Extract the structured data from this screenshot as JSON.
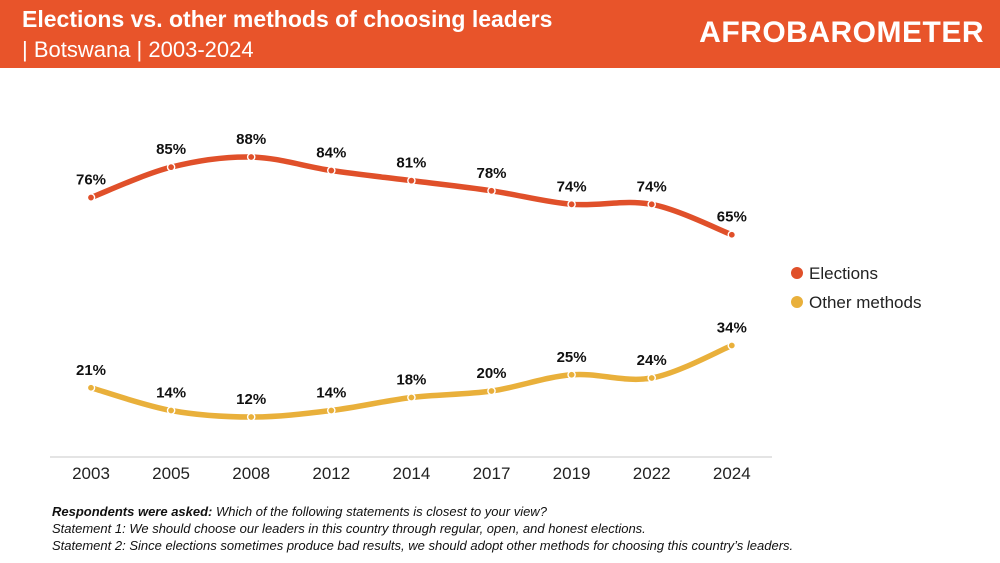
{
  "header": {
    "title": "Elections vs. other methods of choosing leaders",
    "subtitle": "| Botswana | 2003-2024",
    "logo": "AFROBAROMETER"
  },
  "colors": {
    "header_bg": "#e8542a",
    "elections": "#e0502a",
    "other": "#e9b03b"
  },
  "chart_data": {
    "type": "line",
    "title": "Elections vs. other methods of choosing leaders",
    "categories": [
      "2003",
      "2005",
      "2008",
      "2012",
      "2014",
      "2017",
      "2019",
      "2022",
      "2024"
    ],
    "series": [
      {
        "name": "Elections",
        "values": [
          76,
          85,
          88,
          84,
          81,
          78,
          74,
          74,
          65
        ],
        "color": "#e0502a"
      },
      {
        "name": "Other methods",
        "values": [
          21,
          14,
          12,
          14,
          18,
          20,
          25,
          24,
          34
        ],
        "color": "#e9b03b"
      }
    ],
    "value_suffix": "%",
    "legend_position": "right",
    "ylim": [
      0,
      100
    ],
    "grid": false
  },
  "notes": {
    "asked_label": "Respondents were asked:",
    "asked_text": " Which of the following statements is closest to your view?",
    "statement1": "Statement 1: We should choose our leaders in this country through regular, open, and honest elections.",
    "statement2": "Statement 2: Since elections sometimes produce bad results, we should adopt other methods for choosing this country’s leaders."
  }
}
